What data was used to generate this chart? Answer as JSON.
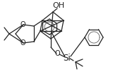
{
  "bg_color": "#ffffff",
  "figsize": [
    1.6,
    1.05
  ],
  "dpi": 100,
  "OH_label": "OH",
  "Si_label": "Si",
  "O_label": "O",
  "O_dioxolane_top": "O",
  "O_dioxolane_bot": "O",
  "line_color": "#222222",
  "line_width": 0.9,
  "font_size": 7.0
}
